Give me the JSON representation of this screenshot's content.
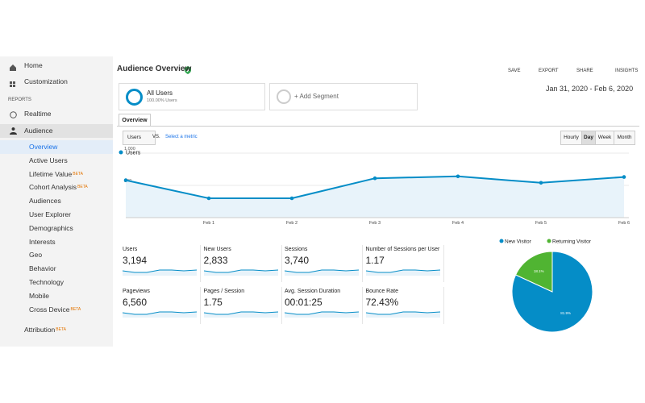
{
  "sidebar": {
    "top": [
      {
        "label": "Home"
      },
      {
        "label": "Customization"
      }
    ],
    "section": "REPORTS",
    "realtime": "Realtime",
    "audience": "Audience",
    "audience_items": [
      {
        "label": "Overview"
      },
      {
        "label": "Active Users"
      },
      {
        "label": "Lifetime Value",
        "badge": "BETA"
      },
      {
        "label": "Cohort Analysis",
        "badge": "BETA"
      },
      {
        "label": "Audiences"
      },
      {
        "label": "User Explorer"
      },
      {
        "label": "Demographics"
      },
      {
        "label": "Interests"
      },
      {
        "label": "Geo"
      },
      {
        "label": "Behavior"
      },
      {
        "label": "Technology"
      },
      {
        "label": "Mobile"
      },
      {
        "label": "Cross Device",
        "badge": "BETA"
      }
    ],
    "attribution": {
      "label": "Attribution",
      "badge": "BETA"
    }
  },
  "header": {
    "title": "Audience Overview",
    "actions": [
      "SAVE",
      "EXPORT",
      "SHARE",
      "INSIGHTS"
    ],
    "date_range": "Jan 31, 2020 - Feb 6, 2020"
  },
  "segments": {
    "name": "All Users",
    "detail": "100.00% Users",
    "add": "+ Add Segment"
  },
  "tab": "Overview",
  "controls": {
    "metric": "Users",
    "vs": "VS.",
    "select": "Select a metric",
    "granularity": [
      "Hourly",
      "Day",
      "Week",
      "Month"
    ]
  },
  "metrics": [
    {
      "label": "Users",
      "value": "3,194"
    },
    {
      "label": "New Users",
      "value": "2,833"
    },
    {
      "label": "Sessions",
      "value": "3,740"
    },
    {
      "label": "Number of Sessions per User",
      "value": "1.17"
    },
    {
      "label": "Pageviews",
      "value": "6,560"
    },
    {
      "label": "Pages / Session",
      "value": "1.75"
    },
    {
      "label": "Avg. Session Duration",
      "value": "00:01:25"
    },
    {
      "label": "Bounce Rate",
      "value": "72.43%"
    }
  ],
  "chart_data": [
    {
      "type": "line",
      "categories": [
        null,
        "Feb 1",
        "Feb 2",
        "Feb 3",
        "Feb 4",
        "Feb 5",
        "Feb 6"
      ],
      "series": [
        {
          "name": "Users",
          "color": "#058dc7",
          "values": [
            580,
            300,
            300,
            610,
            640,
            540,
            630
          ]
        }
      ],
      "ylim": [
        0,
        1100
      ],
      "yticks": [
        500,
        {
          "value": 1000,
          "label": "1,000"
        }
      ],
      "grid": true
    },
    {
      "type": "pie",
      "categories": [
        "New Visitor",
        "Returning Visitor"
      ],
      "values": [
        81.9,
        18.1
      ],
      "value_labels": [
        "81.9%",
        "18.1%"
      ],
      "colors": [
        "#058dc7",
        "#50b432"
      ]
    }
  ]
}
